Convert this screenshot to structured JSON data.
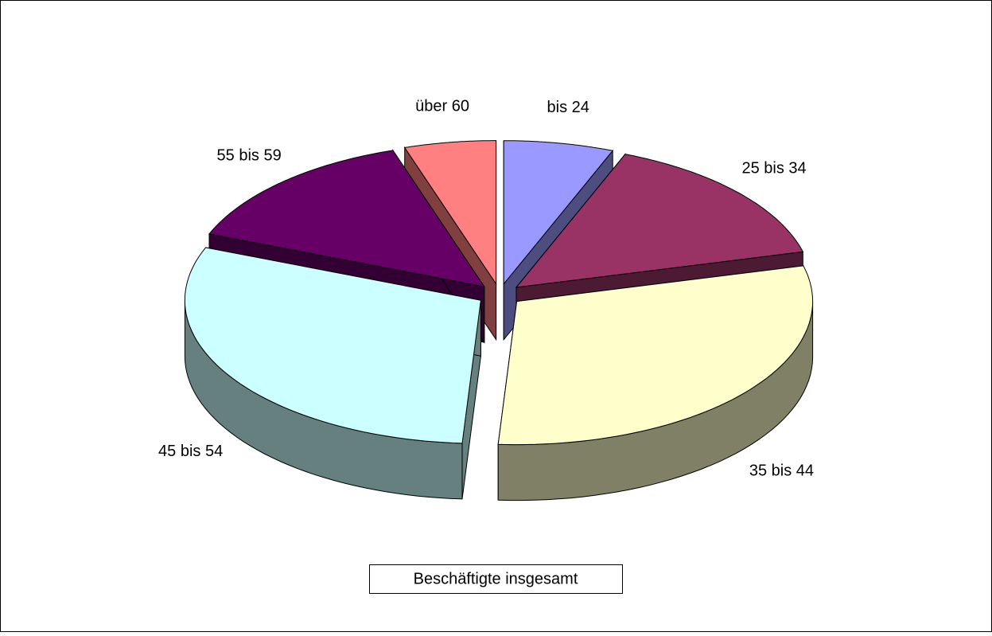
{
  "chart_data": {
    "type": "pie",
    "categories": [
      "bis 24",
      "25 bis 34",
      "35 bis 44",
      "45 bis 54",
      "55 bis 59",
      "über 60"
    ],
    "series": [
      {
        "name": "Beschäftigte insgesamt",
        "values": [
          6,
          15,
          30,
          30,
          14,
          5
        ]
      }
    ],
    "colors": [
      "#9999ff",
      "#993366",
      "#ffffcc",
      "#ccffff",
      "#660066",
      "#ff8080"
    ],
    "legend": "bottom"
  }
}
